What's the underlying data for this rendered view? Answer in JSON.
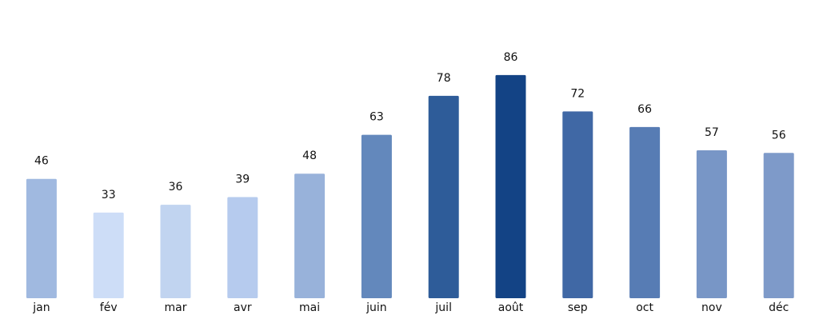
{
  "chart_data": {
    "type": "bar",
    "categories": [
      "jan",
      "fév",
      "mar",
      "avr",
      "mai",
      "juin",
      "juil",
      "août",
      "sep",
      "oct",
      "nov",
      "déc"
    ],
    "values": [
      46,
      33,
      36,
      39,
      48,
      63,
      78,
      86,
      72,
      66,
      57,
      56
    ],
    "colors": [
      "#a0b9e0",
      "#cdddf7",
      "#c1d4f0",
      "#b6cbee",
      "#98b2da",
      "#6388bc",
      "#2e5c99",
      "#134385",
      "#4068a5",
      "#577cb4",
      "#7896c6",
      "#7e9ac9"
    ],
    "ylim": [
      0,
      100
    ]
  }
}
